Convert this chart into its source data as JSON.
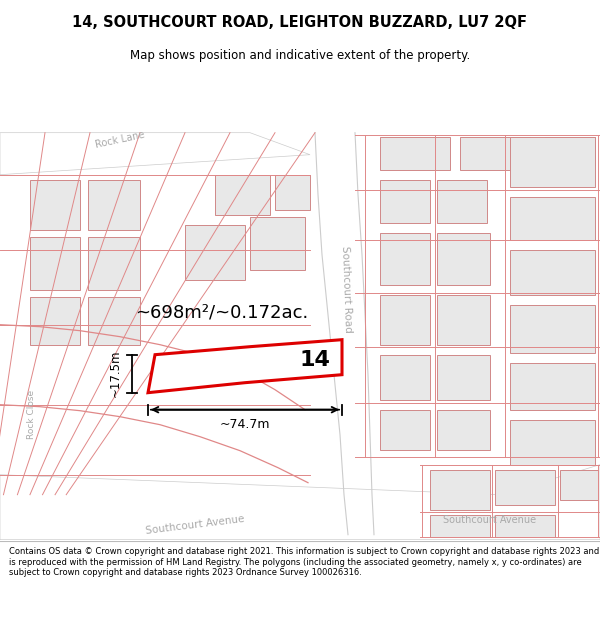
{
  "title_line1": "14, SOUTHCOURT ROAD, LEIGHTON BUZZARD, LU7 2QF",
  "title_line2": "Map shows position and indicative extent of the property.",
  "footer_text": "Contains OS data © Crown copyright and database right 2021. This information is subject to Crown copyright and database rights 2023 and is reproduced with the permission of HM Land Registry. The polygons (including the associated geometry, namely x, y co-ordinates) are subject to Crown copyright and database rights 2023 Ordnance Survey 100026316.",
  "area_text": "~698m²/~0.172ac.",
  "width_text": "~74.7m",
  "height_text": "~17.5m",
  "plot_number": "14",
  "building_fill": "#e8e8e8",
  "building_stroke": "#d08888",
  "plot_stroke": "#e08888",
  "highlight_stroke": "#dd0000",
  "highlight_fill": "#ffffff"
}
